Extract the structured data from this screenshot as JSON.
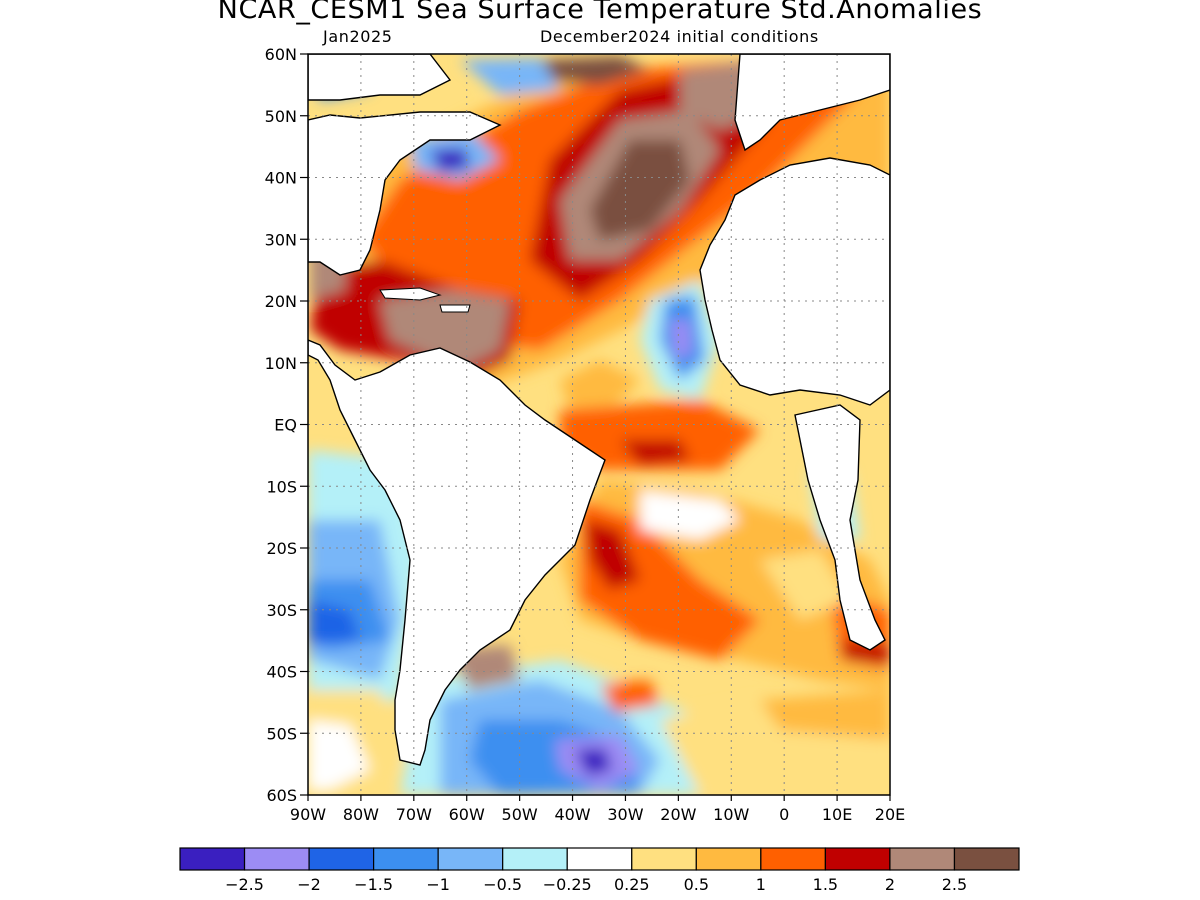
{
  "header": {
    "title": "NCAR_CESM1 Sea Surface Temperature Std.Anomalies",
    "month": "Jan2025",
    "initial_conditions": "December2024 initial conditions"
  },
  "axes": {
    "lat_labels": [
      "60N",
      "50N",
      "40N",
      "30N",
      "20N",
      "10N",
      "EQ",
      "10S",
      "20S",
      "30S",
      "40S",
      "50S",
      "60S"
    ],
    "lon_labels": [
      "90W",
      "80W",
      "70W",
      "60W",
      "50W",
      "40W",
      "30W",
      "20W",
      "10W",
      "0",
      "10E",
      "20E"
    ],
    "lat_range": [
      -60,
      60
    ],
    "lon_range": [
      -90,
      20
    ],
    "grid": "dotted"
  },
  "colorbar": {
    "colors": [
      "#3a1fc0",
      "#9c8cf4",
      "#1f64e6",
      "#3c8ff0",
      "#78b6f8",
      "#b4f0f8",
      "#ffffff",
      "#ffe080",
      "#ffba40",
      "#ff6000",
      "#c00000",
      "#b08878",
      "#7a5040"
    ],
    "tick_labels": [
      "−2.5",
      "−2",
      "−1.5",
      "−1",
      "−0.5",
      "−0.25",
      "0.25",
      "0.5",
      "1",
      "1.5",
      "2",
      "2.5"
    ]
  }
}
